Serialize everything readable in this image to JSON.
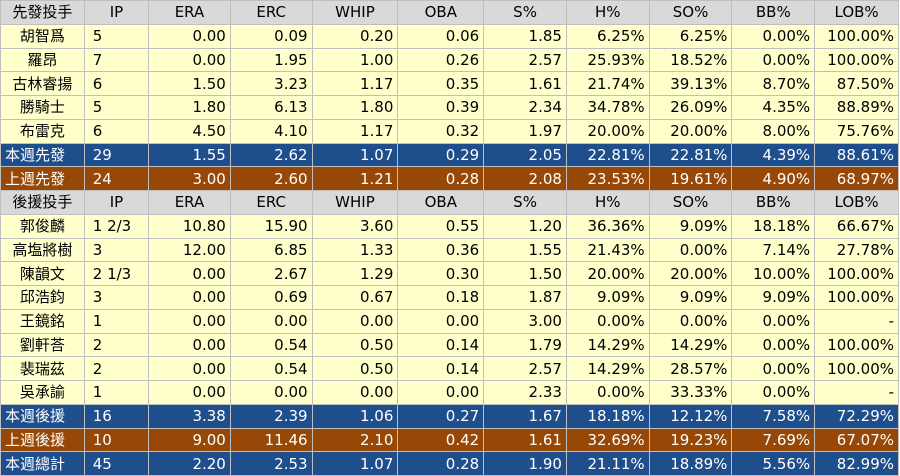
{
  "headers": [
    "IP",
    "ERA",
    "ERC",
    "WHIP",
    "OBA",
    "S%",
    "H%",
    "SO%",
    "BB%",
    "LOB%"
  ],
  "starters": {
    "title": "先發投手",
    "rows": [
      {
        "name": "胡智爲",
        "values": [
          "5",
          "0.00",
          "0.09",
          "0.20",
          "0.06",
          "1.85",
          "6.25%",
          "6.25%",
          "0.00%",
          "100.00%"
        ]
      },
      {
        "name": "羅昂",
        "values": [
          "7",
          "0.00",
          "1.95",
          "1.00",
          "0.26",
          "2.57",
          "25.93%",
          "18.52%",
          "0.00%",
          "100.00%"
        ]
      },
      {
        "name": "古林睿揚",
        "values": [
          "6",
          "1.50",
          "3.23",
          "1.17",
          "0.35",
          "1.61",
          "21.74%",
          "39.13%",
          "8.70%",
          "87.50%"
        ]
      },
      {
        "name": "勝騎士",
        "values": [
          "5",
          "1.80",
          "6.13",
          "1.80",
          "0.39",
          "2.34",
          "34.78%",
          "26.09%",
          "4.35%",
          "88.89%"
        ]
      },
      {
        "name": "布雷克",
        "values": [
          "6",
          "4.50",
          "4.10",
          "1.17",
          "0.32",
          "1.97",
          "20.00%",
          "20.00%",
          "8.00%",
          "75.76%"
        ]
      }
    ],
    "this_week": {
      "name": "本週先發",
      "values": [
        "29",
        "1.55",
        "2.62",
        "1.07",
        "0.29",
        "2.05",
        "22.81%",
        "22.81%",
        "4.39%",
        "88.61%"
      ]
    },
    "last_week": {
      "name": "上週先發",
      "values": [
        "24",
        "3.00",
        "2.60",
        "1.21",
        "0.28",
        "2.08",
        "23.53%",
        "19.61%",
        "4.90%",
        "68.97%"
      ]
    }
  },
  "relievers": {
    "title": "後援投手",
    "rows": [
      {
        "name": "郭俊麟",
        "values": [
          "1 2/3",
          "10.80",
          "15.90",
          "3.60",
          "0.55",
          "1.20",
          "36.36%",
          "9.09%",
          "18.18%",
          "66.67%"
        ]
      },
      {
        "name": "高塩將樹",
        "values": [
          "3",
          "12.00",
          "6.85",
          "1.33",
          "0.36",
          "1.55",
          "21.43%",
          "0.00%",
          "7.14%",
          "27.78%"
        ]
      },
      {
        "name": "陳韻文",
        "values": [
          "2 1/3",
          "0.00",
          "2.67",
          "1.29",
          "0.30",
          "1.50",
          "20.00%",
          "20.00%",
          "10.00%",
          "100.00%"
        ]
      },
      {
        "name": "邱浩鈞",
        "values": [
          "3",
          "0.00",
          "0.69",
          "0.67",
          "0.18",
          "1.87",
          "9.09%",
          "9.09%",
          "9.09%",
          "100.00%"
        ]
      },
      {
        "name": "王鏡銘",
        "values": [
          "1",
          "0.00",
          "0.00",
          "0.00",
          "0.00",
          "3.00",
          "0.00%",
          "0.00%",
          "0.00%",
          "-"
        ]
      },
      {
        "name": "劉軒荅",
        "values": [
          "2",
          "0.00",
          "0.54",
          "0.50",
          "0.14",
          "1.79",
          "14.29%",
          "14.29%",
          "0.00%",
          "100.00%"
        ]
      },
      {
        "name": "裴瑞茲",
        "values": [
          "2",
          "0.00",
          "0.54",
          "0.50",
          "0.14",
          "2.57",
          "14.29%",
          "28.57%",
          "0.00%",
          "100.00%"
        ]
      },
      {
        "name": "吳承諭",
        "values": [
          "1",
          "0.00",
          "0.00",
          "0.00",
          "0.00",
          "2.33",
          "0.00%",
          "33.33%",
          "0.00%",
          "-"
        ]
      }
    ],
    "this_week": {
      "name": "本週後援",
      "values": [
        "16",
        "3.38",
        "2.39",
        "1.06",
        "0.27",
        "1.67",
        "18.18%",
        "12.12%",
        "7.58%",
        "72.29%"
      ]
    },
    "last_week": {
      "name": "上週後援",
      "values": [
        "10",
        "9.00",
        "11.46",
        "2.10",
        "0.42",
        "1.61",
        "32.69%",
        "19.23%",
        "7.69%",
        "67.07%"
      ]
    }
  },
  "total": {
    "name": "本週總計",
    "values": [
      "45",
      "2.20",
      "2.53",
      "1.07",
      "0.28",
      "1.90",
      "21.11%",
      "18.89%",
      "5.56%",
      "82.99%"
    ]
  },
  "colors": {
    "header_bg": "#d9d9d9",
    "row_bg": "#ffffcc",
    "this_week_bg": "#1f4e8c",
    "last_week_bg": "#974806",
    "summary_text": "#ffffff"
  }
}
